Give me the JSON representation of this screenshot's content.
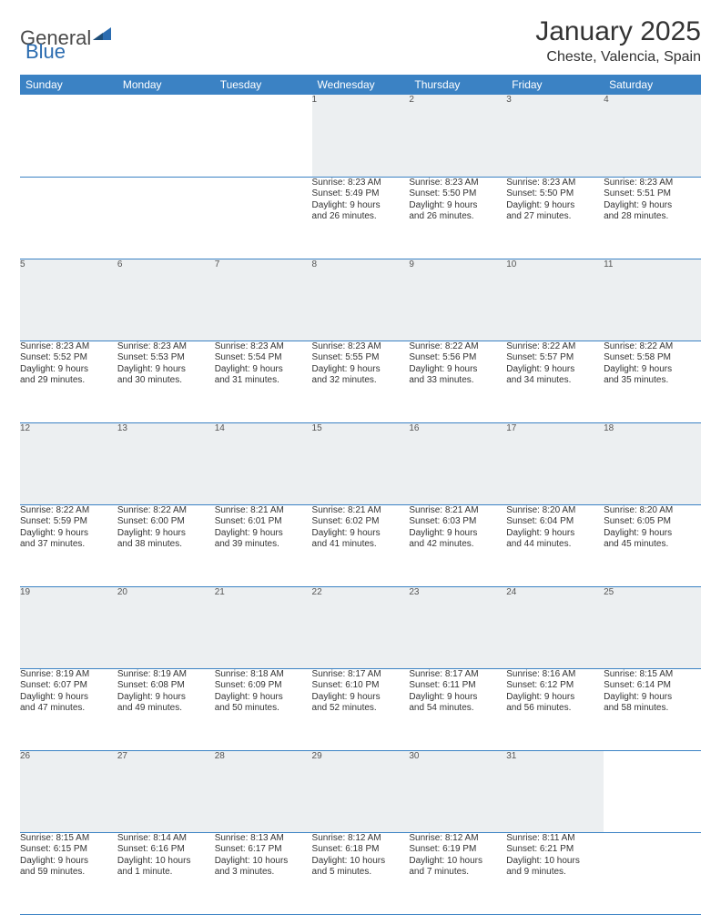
{
  "brand": {
    "part1": "General",
    "part2": "Blue"
  },
  "title": "January 2025",
  "location": "Cheste, Valencia, Spain",
  "colors": {
    "header_bg": "#3b82c4",
    "header_text": "#ffffff",
    "daynum_bg": "#eceff1",
    "row_divider": "#3b82c4",
    "text": "#333333",
    "page_bg": "#ffffff"
  },
  "typography": {
    "title_fontsize": 30,
    "location_fontsize": 16,
    "dayheader_fontsize": 12,
    "daynum_fontsize": 11,
    "cell_fontsize": 10
  },
  "day_headers": [
    "Sunday",
    "Monday",
    "Tuesday",
    "Wednesday",
    "Thursday",
    "Friday",
    "Saturday"
  ],
  "weeks": [
    [
      null,
      null,
      null,
      {
        "n": "1",
        "sr": "8:23 AM",
        "ss": "5:49 PM",
        "dl": "9 hours and 26 minutes."
      },
      {
        "n": "2",
        "sr": "8:23 AM",
        "ss": "5:50 PM",
        "dl": "9 hours and 26 minutes."
      },
      {
        "n": "3",
        "sr": "8:23 AM",
        "ss": "5:50 PM",
        "dl": "9 hours and 27 minutes."
      },
      {
        "n": "4",
        "sr": "8:23 AM",
        "ss": "5:51 PM",
        "dl": "9 hours and 28 minutes."
      }
    ],
    [
      {
        "n": "5",
        "sr": "8:23 AM",
        "ss": "5:52 PM",
        "dl": "9 hours and 29 minutes."
      },
      {
        "n": "6",
        "sr": "8:23 AM",
        "ss": "5:53 PM",
        "dl": "9 hours and 30 minutes."
      },
      {
        "n": "7",
        "sr": "8:23 AM",
        "ss": "5:54 PM",
        "dl": "9 hours and 31 minutes."
      },
      {
        "n": "8",
        "sr": "8:23 AM",
        "ss": "5:55 PM",
        "dl": "9 hours and 32 minutes."
      },
      {
        "n": "9",
        "sr": "8:22 AM",
        "ss": "5:56 PM",
        "dl": "9 hours and 33 minutes."
      },
      {
        "n": "10",
        "sr": "8:22 AM",
        "ss": "5:57 PM",
        "dl": "9 hours and 34 minutes."
      },
      {
        "n": "11",
        "sr": "8:22 AM",
        "ss": "5:58 PM",
        "dl": "9 hours and 35 minutes."
      }
    ],
    [
      {
        "n": "12",
        "sr": "8:22 AM",
        "ss": "5:59 PM",
        "dl": "9 hours and 37 minutes."
      },
      {
        "n": "13",
        "sr": "8:22 AM",
        "ss": "6:00 PM",
        "dl": "9 hours and 38 minutes."
      },
      {
        "n": "14",
        "sr": "8:21 AM",
        "ss": "6:01 PM",
        "dl": "9 hours and 39 minutes."
      },
      {
        "n": "15",
        "sr": "8:21 AM",
        "ss": "6:02 PM",
        "dl": "9 hours and 41 minutes."
      },
      {
        "n": "16",
        "sr": "8:21 AM",
        "ss": "6:03 PM",
        "dl": "9 hours and 42 minutes."
      },
      {
        "n": "17",
        "sr": "8:20 AM",
        "ss": "6:04 PM",
        "dl": "9 hours and 44 minutes."
      },
      {
        "n": "18",
        "sr": "8:20 AM",
        "ss": "6:05 PM",
        "dl": "9 hours and 45 minutes."
      }
    ],
    [
      {
        "n": "19",
        "sr": "8:19 AM",
        "ss": "6:07 PM",
        "dl": "9 hours and 47 minutes."
      },
      {
        "n": "20",
        "sr": "8:19 AM",
        "ss": "6:08 PM",
        "dl": "9 hours and 49 minutes."
      },
      {
        "n": "21",
        "sr": "8:18 AM",
        "ss": "6:09 PM",
        "dl": "9 hours and 50 minutes."
      },
      {
        "n": "22",
        "sr": "8:17 AM",
        "ss": "6:10 PM",
        "dl": "9 hours and 52 minutes."
      },
      {
        "n": "23",
        "sr": "8:17 AM",
        "ss": "6:11 PM",
        "dl": "9 hours and 54 minutes."
      },
      {
        "n": "24",
        "sr": "8:16 AM",
        "ss": "6:12 PM",
        "dl": "9 hours and 56 minutes."
      },
      {
        "n": "25",
        "sr": "8:15 AM",
        "ss": "6:14 PM",
        "dl": "9 hours and 58 minutes."
      }
    ],
    [
      {
        "n": "26",
        "sr": "8:15 AM",
        "ss": "6:15 PM",
        "dl": "9 hours and 59 minutes."
      },
      {
        "n": "27",
        "sr": "8:14 AM",
        "ss": "6:16 PM",
        "dl": "10 hours and 1 minute."
      },
      {
        "n": "28",
        "sr": "8:13 AM",
        "ss": "6:17 PM",
        "dl": "10 hours and 3 minutes."
      },
      {
        "n": "29",
        "sr": "8:12 AM",
        "ss": "6:18 PM",
        "dl": "10 hours and 5 minutes."
      },
      {
        "n": "30",
        "sr": "8:12 AM",
        "ss": "6:19 PM",
        "dl": "10 hours and 7 minutes."
      },
      {
        "n": "31",
        "sr": "8:11 AM",
        "ss": "6:21 PM",
        "dl": "10 hours and 9 minutes."
      },
      null
    ]
  ],
  "labels": {
    "sunrise": "Sunrise:",
    "sunset": "Sunset:",
    "daylight": "Daylight:"
  }
}
